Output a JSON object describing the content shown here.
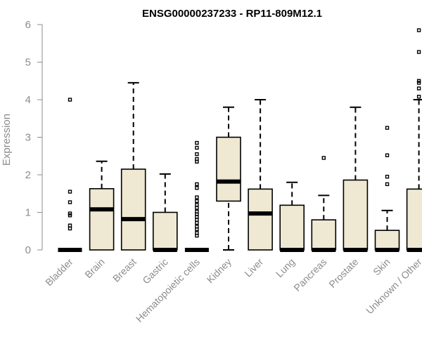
{
  "chart_data": {
    "type": "box",
    "title": "ENSG00000237233 - RP11-809M12.1",
    "ylabel": "Expression",
    "xlabel": "",
    "ylim": [
      0,
      6
    ],
    "yticks": [
      0,
      1,
      2,
      3,
      4,
      5,
      6
    ],
    "grid": false,
    "colors": {
      "box_fill": "#efe8d2",
      "stroke": "#000000",
      "axis": "#8c8c8c"
    },
    "categories": [
      "Bladder",
      "Brain",
      "Breast",
      "Gastric",
      "Hematopoietic cells",
      "Kidney",
      "Liver",
      "Lung",
      "Pancreas",
      "Prostate",
      "Skin",
      "Unknown / Other"
    ],
    "boxes": [
      {
        "category": "Bladder",
        "q1": 0,
        "median": 0,
        "q3": 0,
        "whisker_low": 0,
        "whisker_high": 0,
        "outliers": [
          4.0,
          1.55,
          1.27,
          0.97,
          0.92,
          0.65,
          0.57
        ]
      },
      {
        "category": "Brain",
        "q1": 0,
        "median": 1.08,
        "q3": 1.63,
        "whisker_low": 0,
        "whisker_high": 2.36,
        "outliers": []
      },
      {
        "category": "Breast",
        "q1": 0,
        "median": 0.82,
        "q3": 2.15,
        "whisker_low": 0,
        "whisker_high": 4.45,
        "outliers": []
      },
      {
        "category": "Gastric",
        "q1": 0,
        "median": 0,
        "q3": 1.0,
        "whisker_low": 0,
        "whisker_high": 2.02,
        "outliers": []
      },
      {
        "category": "Hematopoietic cells",
        "q1": 0,
        "median": 0,
        "q3": 0,
        "whisker_low": 0,
        "whisker_high": 0,
        "outliers": [
          2.85,
          2.72,
          2.55,
          2.42,
          2.35,
          1.75,
          1.65,
          1.4,
          1.3,
          1.2,
          1.12,
          1.02,
          0.95,
          0.88,
          0.8,
          0.72,
          0.62,
          0.55,
          0.45,
          0.38
        ]
      },
      {
        "category": "Kidney",
        "q1": 1.3,
        "median": 1.82,
        "q3": 3.0,
        "whisker_low": 0,
        "whisker_high": 3.8,
        "outliers": []
      },
      {
        "category": "Liver",
        "q1": 0,
        "median": 0.97,
        "q3": 1.62,
        "whisker_low": 0,
        "whisker_high": 4.0,
        "outliers": []
      },
      {
        "category": "Lung",
        "q1": 0,
        "median": 0,
        "q3": 1.19,
        "whisker_low": 0,
        "whisker_high": 1.8,
        "outliers": []
      },
      {
        "category": "Pancreas",
        "q1": 0,
        "median": 0,
        "q3": 0.8,
        "whisker_low": 0,
        "whisker_high": 1.45,
        "outliers": [
          2.45
        ]
      },
      {
        "category": "Prostate",
        "q1": 0,
        "median": 0,
        "q3": 1.86,
        "whisker_low": 0,
        "whisker_high": 3.8,
        "outliers": []
      },
      {
        "category": "Skin",
        "q1": 0,
        "median": 0,
        "q3": 0.52,
        "whisker_low": 0,
        "whisker_high": 1.05,
        "outliers": [
          3.25,
          2.52,
          1.95,
          1.75
        ]
      },
      {
        "category": "Unknown / Other",
        "q1": 0,
        "median": 0,
        "q3": 1.62,
        "whisker_low": 0,
        "whisker_high": 4.0,
        "outliers": [
          5.85,
          5.27,
          4.5,
          4.45,
          4.3,
          4.08
        ]
      }
    ]
  }
}
